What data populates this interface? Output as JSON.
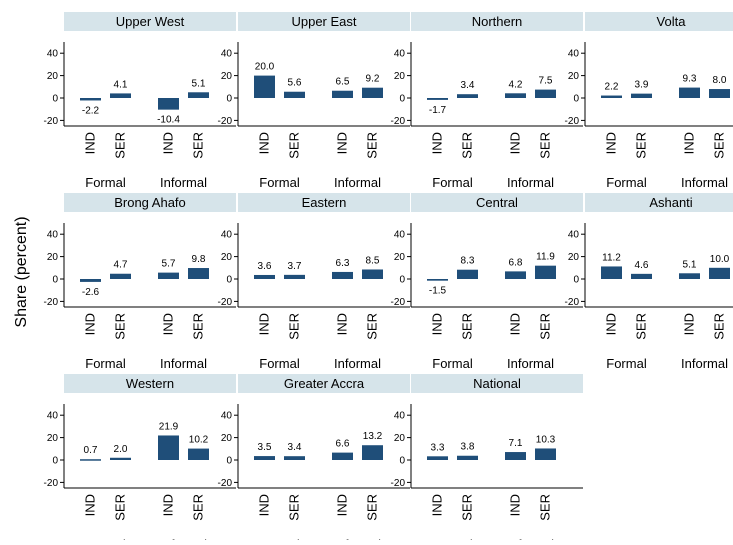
{
  "chart_data": {
    "type": "bar",
    "ylabel": "Share (percent)",
    "ylim": [
      -25,
      50
    ],
    "yticks": [
      -20,
      0,
      20,
      40
    ],
    "bar_labels": [
      "IND",
      "SER",
      "IND",
      "SER"
    ],
    "groups": [
      "Formal",
      "Informal"
    ],
    "colors": {
      "bar": "#1f4e79",
      "header": "#d6e4ea",
      "axis": "#000000"
    },
    "panels": [
      {
        "title": "Upper West",
        "values": [
          -2.2,
          4.1,
          -10.4,
          5.1
        ]
      },
      {
        "title": "Upper East",
        "values": [
          20.0,
          5.6,
          6.5,
          9.2
        ]
      },
      {
        "title": "Northern",
        "values": [
          -1.7,
          3.4,
          4.2,
          7.5
        ]
      },
      {
        "title": "Volta",
        "values": [
          2.2,
          3.9,
          9.3,
          8.0
        ]
      },
      {
        "title": "Brong Ahafo",
        "values": [
          -2.6,
          4.7,
          5.7,
          9.8
        ]
      },
      {
        "title": "Eastern",
        "values": [
          3.6,
          3.7,
          6.3,
          8.5
        ]
      },
      {
        "title": "Central",
        "values": [
          -1.5,
          8.3,
          6.8,
          11.9
        ]
      },
      {
        "title": "Ashanti",
        "values": [
          11.2,
          4.6,
          5.1,
          10.0
        ]
      },
      {
        "title": "Western",
        "values": [
          0.7,
          2.0,
          21.9,
          10.2
        ]
      },
      {
        "title": "Greater Accra",
        "values": [
          3.5,
          3.4,
          6.6,
          13.2
        ]
      },
      {
        "title": "National",
        "values": [
          3.3,
          3.8,
          7.1,
          10.3
        ]
      }
    ]
  }
}
